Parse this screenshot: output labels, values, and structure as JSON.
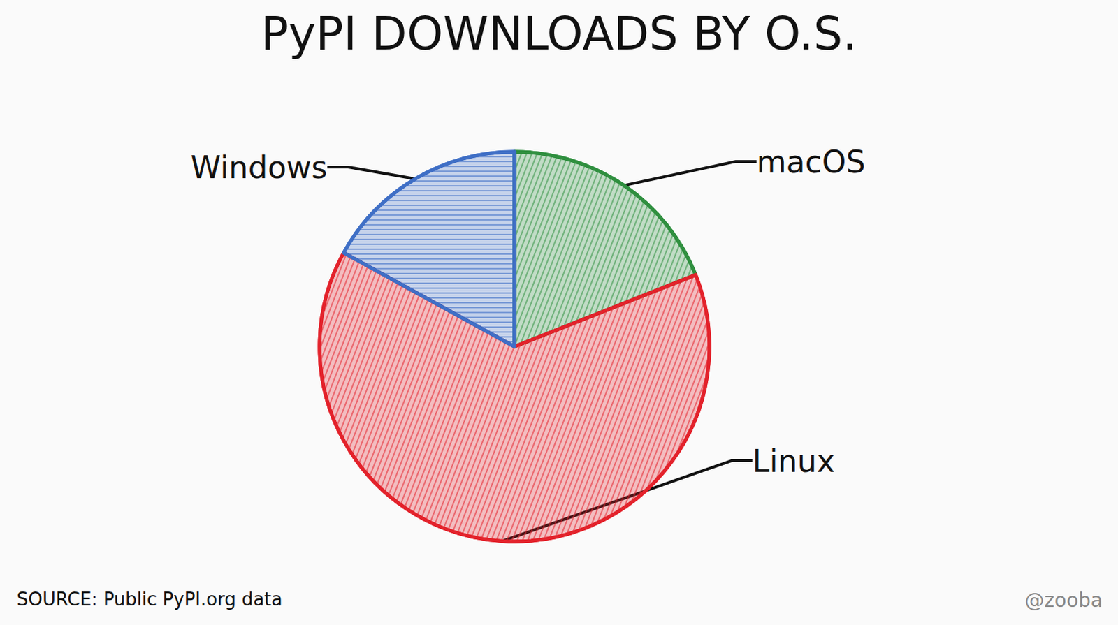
{
  "chart_data": {
    "type": "pie",
    "title": "PyPI DOWNLOADS BY O.S.",
    "categories": [
      "macOS",
      "Linux",
      "Windows"
    ],
    "values": [
      19,
      64,
      17
    ],
    "colors": [
      "#2f8f3f",
      "#e3222b",
      "#3f6fc6"
    ],
    "source": "SOURCE: Public PyPI.org data",
    "credit": "@zooba"
  }
}
